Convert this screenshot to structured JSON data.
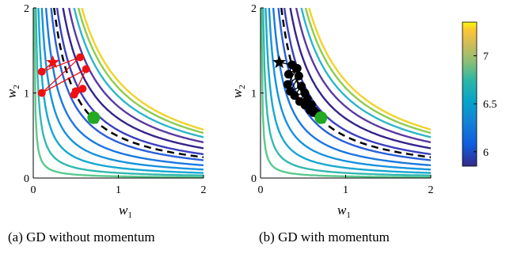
{
  "figure": {
    "captions": [
      "(a) GD without momentum",
      "(b) GD with momentum"
    ]
  },
  "chart_data": [
    {
      "type": "line",
      "subplot": "(a) GD without momentum",
      "xlabel": "w1",
      "ylabel": "w2",
      "xlim": [
        0,
        2
      ],
      "ylim": [
        0,
        2
      ],
      "xticks": [
        "0",
        "1",
        "2"
      ],
      "yticks": [
        "0",
        "1",
        "2"
      ],
      "contour_levels": [
        0.02,
        0.06,
        0.12,
        0.2,
        0.3,
        0.42,
        0.56,
        0.7,
        0.84,
        0.96,
        1.06,
        1.14
      ],
      "dashed_curve": {
        "product": 0.49,
        "style": "dashed",
        "color": "#000000"
      },
      "start_marker": {
        "shape": "star",
        "x": 0.23,
        "y": 1.36,
        "color": "#ee1111"
      },
      "end_marker": {
        "shape": "circle",
        "x": 0.71,
        "y": 0.71,
        "color": "#22aa22"
      },
      "trajectory": {
        "color": "#ee1111",
        "points": [
          [
            0.23,
            1.36
          ],
          [
            0.1,
            1.25
          ],
          [
            0.55,
            1.42
          ],
          [
            0.1,
            1.0
          ],
          [
            0.62,
            1.28
          ],
          [
            0.5,
            1.02
          ],
          [
            0.58,
            1.05
          ],
          [
            0.48,
            0.98
          ]
        ]
      }
    },
    {
      "type": "line",
      "subplot": "(b) GD with momentum",
      "xlabel": "w1",
      "ylabel": "w2",
      "xlim": [
        0,
        2
      ],
      "ylim": [
        0,
        2
      ],
      "xticks": [
        "0",
        "1",
        "2"
      ],
      "yticks": [
        "0",
        "1",
        "2"
      ],
      "contour_levels": [
        0.02,
        0.06,
        0.12,
        0.2,
        0.3,
        0.42,
        0.56,
        0.7,
        0.84,
        0.96,
        1.06,
        1.14
      ],
      "dashed_curve": {
        "product": 0.49,
        "style": "dashed",
        "color": "#000000"
      },
      "start_marker": {
        "shape": "star",
        "x": 0.22,
        "y": 1.36,
        "color": "#000000"
      },
      "end_marker": {
        "shape": "circle",
        "x": 0.71,
        "y": 0.71,
        "color": "#22aa22"
      },
      "trajectory": {
        "color": "#000000",
        "points": [
          [
            0.22,
            1.36
          ],
          [
            0.37,
            1.33
          ],
          [
            0.33,
            1.22
          ],
          [
            0.43,
            1.29
          ],
          [
            0.32,
            1.1
          ],
          [
            0.45,
            1.2
          ],
          [
            0.35,
            1.02
          ],
          [
            0.48,
            1.08
          ],
          [
            0.4,
            0.97
          ],
          [
            0.52,
            1.0
          ],
          [
            0.46,
            0.9
          ],
          [
            0.55,
            0.93
          ],
          [
            0.52,
            0.86
          ],
          [
            0.6,
            0.86
          ],
          [
            0.58,
            0.8
          ],
          [
            0.63,
            0.79
          ],
          [
            0.62,
            0.77
          ],
          [
            0.66,
            0.76
          ]
        ]
      }
    }
  ],
  "colorbar": {
    "colormap": "parula",
    "range": [
      5.85,
      7.35
    ],
    "ticks": [
      {
        "value": 6,
        "label": "6"
      },
      {
        "value": 6.5,
        "label": "6.5"
      },
      {
        "value": 7,
        "label": "7"
      }
    ]
  }
}
